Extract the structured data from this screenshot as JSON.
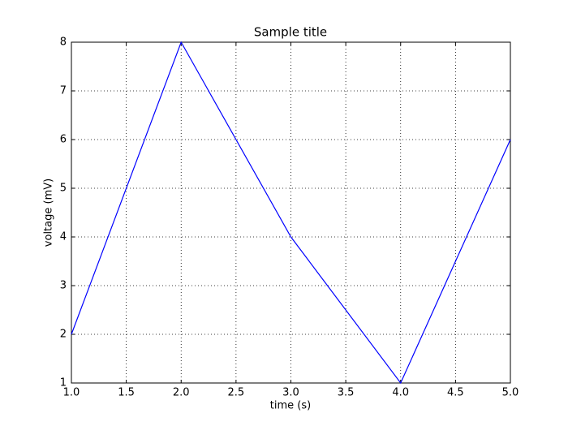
{
  "chart_data": {
    "type": "line",
    "title": "Sample title",
    "x_label": "time (s)",
    "y_label": "voltage (mV)",
    "x": [
      1,
      2,
      3,
      4,
      5
    ],
    "values": [
      2,
      8,
      4,
      1,
      6
    ],
    "color": "#0000ff",
    "xlim": [
      1,
      5
    ],
    "ylim": [
      1,
      8
    ],
    "xticks": [
      {
        "value": 1,
        "label": "1.0"
      },
      1.5,
      {
        "value": 2,
        "label": "2.0"
      },
      2.5,
      {
        "value": 3,
        "label": "3.0"
      },
      3.5,
      {
        "value": 4,
        "label": "4.0"
      },
      4.5,
      {
        "value": 5,
        "label": "5.0"
      }
    ],
    "yticks": [
      1,
      2,
      3,
      4,
      5,
      6,
      7,
      8
    ],
    "grid": true
  }
}
